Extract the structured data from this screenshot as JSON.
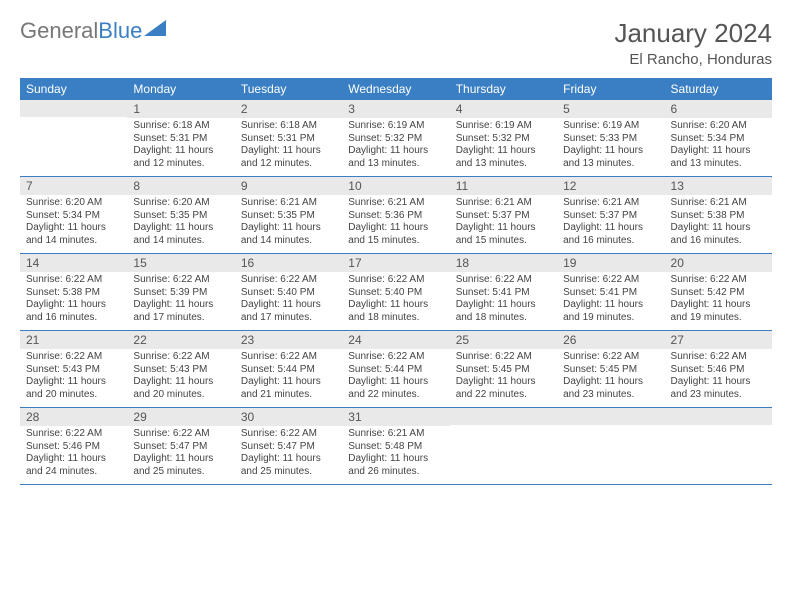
{
  "logo": {
    "part1": "General",
    "part2": "Blue",
    "triangle_color": "#3a7fc4"
  },
  "title": {
    "month": "January 2024",
    "location": "El Rancho, Honduras"
  },
  "styling": {
    "header_bg": "#3a7fc4",
    "header_text": "#ffffff",
    "daynum_bg": "#e9e9e9",
    "body_text": "#444444",
    "row_border": "#3a7fc4",
    "page_bg": "#ffffff"
  },
  "calendar": {
    "day_headers": [
      "Sunday",
      "Monday",
      "Tuesday",
      "Wednesday",
      "Thursday",
      "Friday",
      "Saturday"
    ],
    "weeks": [
      [
        null,
        {
          "n": "1",
          "sunrise": "Sunrise: 6:18 AM",
          "sunset": "Sunset: 5:31 PM",
          "dl1": "Daylight: 11 hours",
          "dl2": "and 12 minutes."
        },
        {
          "n": "2",
          "sunrise": "Sunrise: 6:18 AM",
          "sunset": "Sunset: 5:31 PM",
          "dl1": "Daylight: 11 hours",
          "dl2": "and 12 minutes."
        },
        {
          "n": "3",
          "sunrise": "Sunrise: 6:19 AM",
          "sunset": "Sunset: 5:32 PM",
          "dl1": "Daylight: 11 hours",
          "dl2": "and 13 minutes."
        },
        {
          "n": "4",
          "sunrise": "Sunrise: 6:19 AM",
          "sunset": "Sunset: 5:32 PM",
          "dl1": "Daylight: 11 hours",
          "dl2": "and 13 minutes."
        },
        {
          "n": "5",
          "sunrise": "Sunrise: 6:19 AM",
          "sunset": "Sunset: 5:33 PM",
          "dl1": "Daylight: 11 hours",
          "dl2": "and 13 minutes."
        },
        {
          "n": "6",
          "sunrise": "Sunrise: 6:20 AM",
          "sunset": "Sunset: 5:34 PM",
          "dl1": "Daylight: 11 hours",
          "dl2": "and 13 minutes."
        }
      ],
      [
        {
          "n": "7",
          "sunrise": "Sunrise: 6:20 AM",
          "sunset": "Sunset: 5:34 PM",
          "dl1": "Daylight: 11 hours",
          "dl2": "and 14 minutes."
        },
        {
          "n": "8",
          "sunrise": "Sunrise: 6:20 AM",
          "sunset": "Sunset: 5:35 PM",
          "dl1": "Daylight: 11 hours",
          "dl2": "and 14 minutes."
        },
        {
          "n": "9",
          "sunrise": "Sunrise: 6:21 AM",
          "sunset": "Sunset: 5:35 PM",
          "dl1": "Daylight: 11 hours",
          "dl2": "and 14 minutes."
        },
        {
          "n": "10",
          "sunrise": "Sunrise: 6:21 AM",
          "sunset": "Sunset: 5:36 PM",
          "dl1": "Daylight: 11 hours",
          "dl2": "and 15 minutes."
        },
        {
          "n": "11",
          "sunrise": "Sunrise: 6:21 AM",
          "sunset": "Sunset: 5:37 PM",
          "dl1": "Daylight: 11 hours",
          "dl2": "and 15 minutes."
        },
        {
          "n": "12",
          "sunrise": "Sunrise: 6:21 AM",
          "sunset": "Sunset: 5:37 PM",
          "dl1": "Daylight: 11 hours",
          "dl2": "and 16 minutes."
        },
        {
          "n": "13",
          "sunrise": "Sunrise: 6:21 AM",
          "sunset": "Sunset: 5:38 PM",
          "dl1": "Daylight: 11 hours",
          "dl2": "and 16 minutes."
        }
      ],
      [
        {
          "n": "14",
          "sunrise": "Sunrise: 6:22 AM",
          "sunset": "Sunset: 5:38 PM",
          "dl1": "Daylight: 11 hours",
          "dl2": "and 16 minutes."
        },
        {
          "n": "15",
          "sunrise": "Sunrise: 6:22 AM",
          "sunset": "Sunset: 5:39 PM",
          "dl1": "Daylight: 11 hours",
          "dl2": "and 17 minutes."
        },
        {
          "n": "16",
          "sunrise": "Sunrise: 6:22 AM",
          "sunset": "Sunset: 5:40 PM",
          "dl1": "Daylight: 11 hours",
          "dl2": "and 17 minutes."
        },
        {
          "n": "17",
          "sunrise": "Sunrise: 6:22 AM",
          "sunset": "Sunset: 5:40 PM",
          "dl1": "Daylight: 11 hours",
          "dl2": "and 18 minutes."
        },
        {
          "n": "18",
          "sunrise": "Sunrise: 6:22 AM",
          "sunset": "Sunset: 5:41 PM",
          "dl1": "Daylight: 11 hours",
          "dl2": "and 18 minutes."
        },
        {
          "n": "19",
          "sunrise": "Sunrise: 6:22 AM",
          "sunset": "Sunset: 5:41 PM",
          "dl1": "Daylight: 11 hours",
          "dl2": "and 19 minutes."
        },
        {
          "n": "20",
          "sunrise": "Sunrise: 6:22 AM",
          "sunset": "Sunset: 5:42 PM",
          "dl1": "Daylight: 11 hours",
          "dl2": "and 19 minutes."
        }
      ],
      [
        {
          "n": "21",
          "sunrise": "Sunrise: 6:22 AM",
          "sunset": "Sunset: 5:43 PM",
          "dl1": "Daylight: 11 hours",
          "dl2": "and 20 minutes."
        },
        {
          "n": "22",
          "sunrise": "Sunrise: 6:22 AM",
          "sunset": "Sunset: 5:43 PM",
          "dl1": "Daylight: 11 hours",
          "dl2": "and 20 minutes."
        },
        {
          "n": "23",
          "sunrise": "Sunrise: 6:22 AM",
          "sunset": "Sunset: 5:44 PM",
          "dl1": "Daylight: 11 hours",
          "dl2": "and 21 minutes."
        },
        {
          "n": "24",
          "sunrise": "Sunrise: 6:22 AM",
          "sunset": "Sunset: 5:44 PM",
          "dl1": "Daylight: 11 hours",
          "dl2": "and 22 minutes."
        },
        {
          "n": "25",
          "sunrise": "Sunrise: 6:22 AM",
          "sunset": "Sunset: 5:45 PM",
          "dl1": "Daylight: 11 hours",
          "dl2": "and 22 minutes."
        },
        {
          "n": "26",
          "sunrise": "Sunrise: 6:22 AM",
          "sunset": "Sunset: 5:45 PM",
          "dl1": "Daylight: 11 hours",
          "dl2": "and 23 minutes."
        },
        {
          "n": "27",
          "sunrise": "Sunrise: 6:22 AM",
          "sunset": "Sunset: 5:46 PM",
          "dl1": "Daylight: 11 hours",
          "dl2": "and 23 minutes."
        }
      ],
      [
        {
          "n": "28",
          "sunrise": "Sunrise: 6:22 AM",
          "sunset": "Sunset: 5:46 PM",
          "dl1": "Daylight: 11 hours",
          "dl2": "and 24 minutes."
        },
        {
          "n": "29",
          "sunrise": "Sunrise: 6:22 AM",
          "sunset": "Sunset: 5:47 PM",
          "dl1": "Daylight: 11 hours",
          "dl2": "and 25 minutes."
        },
        {
          "n": "30",
          "sunrise": "Sunrise: 6:22 AM",
          "sunset": "Sunset: 5:47 PM",
          "dl1": "Daylight: 11 hours",
          "dl2": "and 25 minutes."
        },
        {
          "n": "31",
          "sunrise": "Sunrise: 6:21 AM",
          "sunset": "Sunset: 5:48 PM",
          "dl1": "Daylight: 11 hours",
          "dl2": "and 26 minutes."
        },
        null,
        null,
        null
      ]
    ]
  }
}
